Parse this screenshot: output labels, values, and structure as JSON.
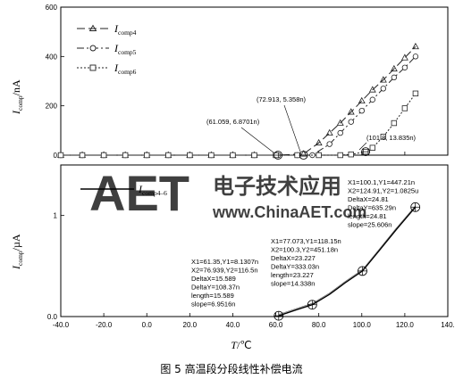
{
  "chart_data": [
    {
      "type": "line",
      "panel": "top",
      "ylabel_main": "I",
      "ylabel_sub": "comp",
      "ylabel_unit": "/nA",
      "xlim": [
        -40,
        140
      ],
      "ylim": [
        0,
        600
      ],
      "yticks": [
        "0",
        "200",
        "400",
        "600"
      ],
      "grid": false,
      "legend": "top-left",
      "series": [
        {
          "name_main": "I",
          "name_sub": "comp4",
          "color": "#222222",
          "dash": "9,4",
          "marker": "triangle",
          "x": [
            -40,
            -30,
            -20,
            -10,
            0,
            10,
            20,
            30,
            40,
            50,
            60.3,
            72.9,
            80,
            85,
            90,
            95,
            100,
            105,
            110,
            115,
            120,
            125
          ],
          "y": [
            0,
            0,
            0,
            0,
            0,
            0,
            0,
            0,
            0,
            0,
            0,
            5,
            50,
            90,
            130,
            175,
            220,
            265,
            305,
            350,
            395,
            440
          ]
        },
        {
          "name_main": "I",
          "name_sub": "comp5",
          "color": "#222222",
          "dash": "8,3,2,3",
          "marker": "circle",
          "x": [
            -40,
            -30,
            -20,
            -10,
            0,
            10,
            20,
            30,
            40,
            50,
            61.1,
            70,
            77,
            85,
            90,
            95,
            100,
            105,
            110,
            115,
            120,
            125
          ],
          "y": [
            0,
            0,
            0,
            0,
            0,
            0,
            0,
            0,
            0,
            0,
            0,
            0,
            0,
            45,
            90,
            135,
            180,
            225,
            270,
            315,
            355,
            400
          ]
        },
        {
          "name_main": "I",
          "name_sub": "comp6",
          "color": "#222222",
          "dash": "2,2",
          "marker": "square",
          "x": [
            -40,
            -30,
            -20,
            -10,
            0,
            10,
            20,
            30,
            40,
            50,
            60,
            70,
            80,
            90,
            95,
            101.8,
            105,
            110,
            115,
            120,
            125
          ],
          "y": [
            0,
            0,
            0,
            0,
            0,
            0,
            0,
            0,
            0,
            0,
            0,
            0,
            0,
            0,
            3,
            14,
            30,
            75,
            130,
            190,
            250
          ]
        }
      ],
      "annotations": [
        {
          "text": "(61.059, 6.8701n)",
          "x": 61.059,
          "y": 0
        },
        {
          "text": "(72.913, 5.358n)",
          "x": 72.913,
          "y": 0
        },
        {
          "text": "(101.8, 13.835n)",
          "x": 101.8,
          "y": 14
        }
      ]
    },
    {
      "type": "line",
      "panel": "bottom",
      "ylabel_main": "I",
      "ylabel_sub": "comp",
      "ylabel_unit": "/µA",
      "xlabel_main": "T",
      "xlabel_unit": "/℃",
      "xlim": [
        -40,
        140
      ],
      "ylim": [
        0,
        1.5
      ],
      "xticks": [
        "-40.0",
        "-20.0",
        "0.0",
        "20.0",
        "40.0",
        "60.0",
        "80.0",
        "100.0",
        "120.0",
        "140."
      ],
      "yticks": [
        "0.0",
        "1"
      ],
      "grid": false,
      "legend": "top-left",
      "series": [
        {
          "name_main": "I",
          "name_sub": "comp4–6",
          "color": "#000000",
          "x": [
            61.35,
            70,
            76.94,
            85,
            92,
            100.3,
            108,
            116,
            124.9
          ],
          "y": [
            0.008,
            0.07,
            0.117,
            0.22,
            0.33,
            0.451,
            0.65,
            0.86,
            1.083
          ]
        }
      ],
      "markers": [
        {
          "x": 61.35,
          "y": 0.008
        },
        {
          "x": 76.94,
          "y": 0.117
        },
        {
          "x": 100.3,
          "y": 0.451
        },
        {
          "x": 124.9,
          "y": 1.083
        }
      ],
      "annotations": [
        {
          "lines": [
            "X1=61.35,Y1=8.1307n",
            "X2=76.939,Y2=116.5n",
            "DeltaX=15.589",
            "DeltaY=108.37n",
            "length=15.589",
            "slope=6.9516n"
          ]
        },
        {
          "lines": [
            "X1=77.073,Y1=118.15n",
            "X2=100.3,Y2=451.18n",
            "DeltaX=23.227",
            "DeltaY=333.03n",
            "length=23.227",
            "slope=14.338n"
          ]
        },
        {
          "lines": [
            "X1=100.1,Y1=447.21n",
            "X2=124.91,Y2=1.0825u",
            "DeltaX=24.81",
            "DeltaY=635.29n",
            "length=24.81",
            "slope=25.606n"
          ]
        }
      ]
    }
  ],
  "caption": "图 5   高温段分段线性补偿电流",
  "watermark": {
    "logo": "AET",
    "cn": "电子技术应用",
    "url": "www.ChinaAET.com",
    "color": "#f1b5b5",
    "color2": "#b9d3ec"
  }
}
